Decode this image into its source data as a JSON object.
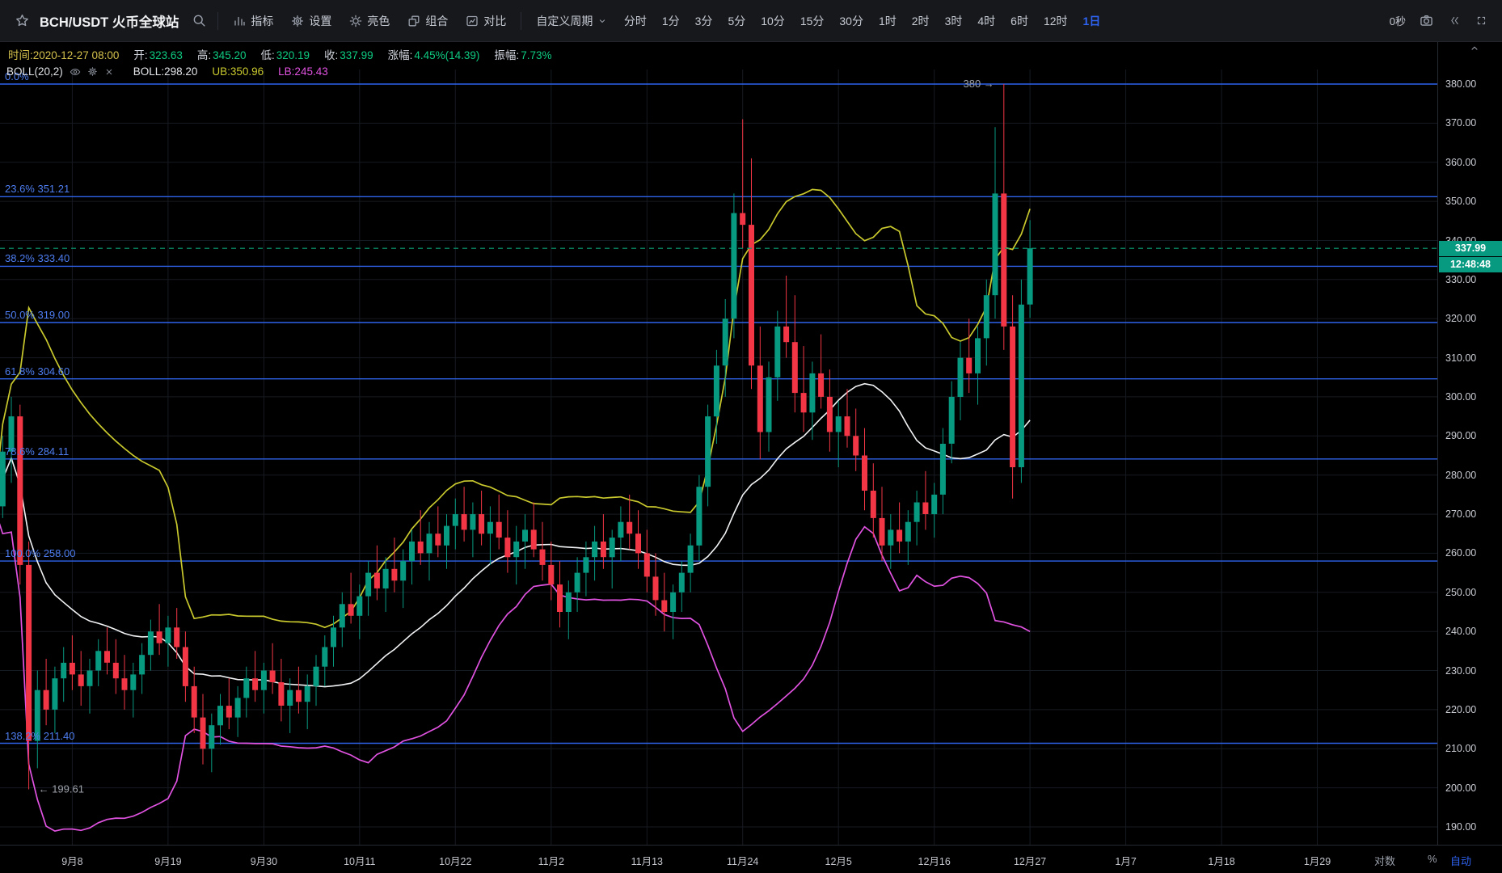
{
  "toolbar": {
    "symbol_title": "BCH/USDT 火币全球站",
    "menu_items": [
      {
        "id": "indicators",
        "label": "指标"
      },
      {
        "id": "settings",
        "label": "设置"
      },
      {
        "id": "theme",
        "label": "亮色"
      },
      {
        "id": "layout",
        "label": "组合"
      },
      {
        "id": "compare",
        "label": "对比"
      }
    ],
    "custom_period_label": "自定义周期",
    "timeframes": [
      "分时",
      "1分",
      "3分",
      "5分",
      "10分",
      "15分",
      "30分",
      "1时",
      "2时",
      "3时",
      "4时",
      "6时",
      "12时",
      "1日"
    ],
    "active_timeframe": "1日",
    "countdown": "0秒"
  },
  "info_bar": {
    "time_text": "时间:2020-12-27 08:00",
    "fields": [
      {
        "label": "开:",
        "value": "323.63"
      },
      {
        "label": "高:",
        "value": "345.20"
      },
      {
        "label": "低:",
        "value": "320.19"
      },
      {
        "label": "收:",
        "value": "337.99"
      },
      {
        "label": "涨幅:",
        "value": "4.45%(14.39)"
      },
      {
        "label": "振幅:",
        "value": "7.73%"
      }
    ]
  },
  "legend": {
    "indicator_name": "BOLL(20,2)",
    "values": [
      {
        "id": "mid",
        "text": "BOLL:298.20"
      },
      {
        "id": "ub",
        "text": "UB:350.96"
      },
      {
        "id": "lb",
        "text": "LB:245.43"
      }
    ]
  },
  "fib_levels": [
    {
      "label": "0.0%",
      "price": 380.0
    },
    {
      "label": "23.6% 351.21",
      "price": 351.21
    },
    {
      "label": "38.2% 333.40",
      "price": 333.4
    },
    {
      "label": "50.0% 319.00",
      "price": 319.0
    },
    {
      "label": "61.8% 304.60",
      "price": 304.6
    },
    {
      "label": "78.6% 284.11",
      "price": 284.11
    },
    {
      "label": "100.0% 258.00",
      "price": 258.0
    },
    {
      "label": "138.2% 211.40",
      "price": 211.4
    }
  ],
  "annotations": [
    {
      "text": "380 →",
      "price": 380.0,
      "day_index": 116,
      "side": "left"
    },
    {
      "text": "← 199.61",
      "price": 199.61,
      "day_index": 4,
      "side": "right"
    }
  ],
  "price_scale": {
    "labels": [
      "380.00",
      "370.00",
      "360.00",
      "350.00",
      "340.00",
      "330.00",
      "320.00",
      "310.00",
      "300.00",
      "290.00",
      "280.00",
      "270.00",
      "260.00",
      "250.00",
      "240.00",
      "230.00",
      "220.00",
      "210.00",
      "200.00",
      "190.00"
    ],
    "last_price_badge": "337.99",
    "countdown_badge": "12:48:48"
  },
  "time_scale": {
    "labels": [
      {
        "text": "9月8",
        "day_index": 9
      },
      {
        "text": "9月19",
        "day_index": 20
      },
      {
        "text": "9月30",
        "day_index": 31
      },
      {
        "text": "10月11",
        "day_index": 42
      },
      {
        "text": "10月22",
        "day_index": 53
      },
      {
        "text": "11月2",
        "day_index": 64
      },
      {
        "text": "11月13",
        "day_index": 75
      },
      {
        "text": "11月24",
        "day_index": 86
      },
      {
        "text": "12月5",
        "day_index": 97
      },
      {
        "text": "12月16",
        "day_index": 108
      },
      {
        "text": "12月27",
        "day_index": 119
      },
      {
        "text": "1月7",
        "day_index": 130
      },
      {
        "text": "1月18",
        "day_index": 141
      },
      {
        "text": "1月29",
        "day_index": 152
      }
    ]
  },
  "bottom_controls": {
    "log": "对数",
    "percent": "%",
    "auto": "自动"
  },
  "colors": {
    "up": "#089981",
    "down": "#f23645",
    "boll_mid": "#f2f3f5",
    "boll_ub": "#c9c92e",
    "boll_lb": "#e052e0",
    "fib_line": "#2e63ea",
    "fib_label": "#4e7ef2",
    "grid": "#161a21",
    "last_price_line": "#0a9f76",
    "accent": "#2e62f0",
    "info_green": "#0ecb81",
    "time_yellow": "#d4c14c",
    "annotation_gray": "#9ca1a9"
  },
  "chart_data": {
    "type": "candlestick",
    "symbol": "BCH/USDT",
    "exchange_label": "火币全球站",
    "interval": "1日",
    "y_axis": {
      "min": 190,
      "max": 380,
      "tick": 10
    },
    "last_price": 337.99,
    "current_candle": {
      "time": "2020-12-27 08:00",
      "open": 323.63,
      "high": 345.2,
      "low": 320.19,
      "close": 337.99,
      "change_pct": "4.45%",
      "change_abs": 14.39,
      "amplitude_pct": "7.73%"
    },
    "indicator": {
      "name": "BOLL",
      "period": 20,
      "multiplier": 2,
      "mid": 298.2,
      "ub": 350.96,
      "lb": 245.43
    },
    "candles": [
      [
        276,
        284,
        268,
        272
      ],
      [
        272,
        290,
        269,
        286
      ],
      [
        286,
        300,
        278,
        295
      ],
      [
        295,
        298,
        252,
        257
      ],
      [
        257,
        263,
        199.61,
        212
      ],
      [
        212,
        230,
        205,
        225
      ],
      [
        225,
        233,
        216,
        220
      ],
      [
        220,
        231,
        214,
        228
      ],
      [
        228,
        236,
        222,
        232
      ],
      [
        232,
        239,
        225,
        229
      ],
      [
        229,
        235,
        221,
        226
      ],
      [
        226,
        233,
        219,
        230
      ],
      [
        230,
        238,
        226,
        235
      ],
      [
        235,
        241,
        229,
        232
      ],
      [
        232,
        238,
        224,
        228
      ],
      [
        228,
        234,
        220,
        225
      ],
      [
        225,
        232,
        218,
        229
      ],
      [
        229,
        237,
        224,
        234
      ],
      [
        234,
        243,
        230,
        240
      ],
      [
        240,
        247,
        234,
        237
      ],
      [
        237,
        244,
        231,
        241
      ],
      [
        241,
        246,
        233,
        236
      ],
      [
        236,
        240,
        222,
        226
      ],
      [
        226,
        231,
        214,
        218
      ],
      [
        218,
        224,
        206,
        210
      ],
      [
        210,
        219,
        204,
        216
      ],
      [
        216,
        224,
        211,
        221
      ],
      [
        221,
        228,
        215,
        218
      ],
      [
        218,
        226,
        213,
        223
      ],
      [
        223,
        231,
        218,
        228
      ],
      [
        228,
        235,
        222,
        225
      ],
      [
        225,
        232,
        219,
        230
      ],
      [
        230,
        237,
        224,
        227
      ],
      [
        227,
        233,
        217,
        221
      ],
      [
        221,
        228,
        214,
        225
      ],
      [
        225,
        231,
        219,
        222
      ],
      [
        222,
        229,
        215,
        226
      ],
      [
        226,
        234,
        221,
        231
      ],
      [
        231,
        239,
        226,
        236
      ],
      [
        236,
        244,
        231,
        241
      ],
      [
        241,
        250,
        236,
        247
      ],
      [
        247,
        255,
        242,
        244
      ],
      [
        244,
        252,
        238,
        249
      ],
      [
        249,
        258,
        244,
        255
      ],
      [
        255,
        262,
        248,
        251
      ],
      [
        251,
        259,
        245,
        256
      ],
      [
        256,
        264,
        250,
        253
      ],
      [
        253,
        261,
        246,
        258
      ],
      [
        258,
        266,
        252,
        263
      ],
      [
        263,
        271,
        257,
        260
      ],
      [
        260,
        268,
        253,
        265
      ],
      [
        265,
        272,
        259,
        262
      ],
      [
        262,
        270,
        256,
        267
      ],
      [
        267,
        274,
        261,
        270
      ],
      [
        270,
        277,
        263,
        266
      ],
      [
        266,
        273,
        259,
        270
      ],
      [
        270,
        276,
        262,
        265
      ],
      [
        265,
        272,
        257,
        268
      ],
      [
        268,
        275,
        261,
        264
      ],
      [
        264,
        271,
        255,
        259
      ],
      [
        259,
        267,
        252,
        263
      ],
      [
        263,
        270,
        256,
        266
      ],
      [
        266,
        273,
        259,
        261
      ],
      [
        261,
        268,
        253,
        257
      ],
      [
        257,
        263,
        248,
        252
      ],
      [
        252,
        258,
        241,
        245
      ],
      [
        245,
        253,
        238,
        250
      ],
      [
        250,
        259,
        245,
        255
      ],
      [
        255,
        263,
        249,
        259
      ],
      [
        259,
        267,
        253,
        263
      ],
      [
        263,
        270,
        256,
        259
      ],
      [
        259,
        266,
        251,
        264
      ],
      [
        264,
        272,
        258,
        268
      ],
      [
        268,
        275,
        261,
        265
      ],
      [
        265,
        271,
        256,
        260
      ],
      [
        260,
        266,
        250,
        254
      ],
      [
        254,
        260,
        244,
        248
      ],
      [
        248,
        255,
        240,
        245
      ],
      [
        245,
        252,
        238,
        250
      ],
      [
        250,
        258,
        245,
        255
      ],
      [
        255,
        265,
        250,
        262
      ],
      [
        262,
        280,
        258,
        277
      ],
      [
        277,
        298,
        272,
        295
      ],
      [
        295,
        312,
        288,
        308
      ],
      [
        308,
        325,
        300,
        320
      ],
      [
        320,
        352,
        315,
        347
      ],
      [
        347,
        371,
        338,
        344
      ],
      [
        344,
        361,
        302,
        308
      ],
      [
        308,
        318,
        284,
        291
      ],
      [
        291,
        309,
        286,
        305
      ],
      [
        305,
        322,
        299,
        318
      ],
      [
        318,
        331,
        310,
        314
      ],
      [
        314,
        326,
        296,
        301
      ],
      [
        301,
        313,
        291,
        296
      ],
      [
        296,
        309,
        289,
        306
      ],
      [
        306,
        316,
        297,
        300
      ],
      [
        300,
        307,
        286,
        291
      ],
      [
        291,
        299,
        282,
        295
      ],
      [
        295,
        302,
        287,
        290
      ],
      [
        290,
        297,
        281,
        285
      ],
      [
        285,
        292,
        271,
        276
      ],
      [
        276,
        283,
        264,
        269
      ],
      [
        269,
        277,
        258,
        262
      ],
      [
        262,
        270,
        256,
        266
      ],
      [
        266,
        273,
        260,
        263
      ],
      [
        263,
        271,
        257,
        268
      ],
      [
        268,
        276,
        262,
        273
      ],
      [
        273,
        281,
        266,
        270
      ],
      [
        270,
        278,
        264,
        275
      ],
      [
        275,
        292,
        270,
        288
      ],
      [
        288,
        304,
        283,
        300
      ],
      [
        300,
        314,
        294,
        310
      ],
      [
        310,
        320,
        301,
        306
      ],
      [
        306,
        318,
        298,
        315
      ],
      [
        315,
        330,
        308,
        326
      ],
      [
        326,
        369,
        320,
        352
      ],
      [
        352,
        380,
        312,
        318
      ],
      [
        318,
        326,
        274,
        282
      ],
      [
        282,
        330,
        278,
        323.6
      ],
      [
        323.63,
        345.2,
        320.19,
        337.99
      ]
    ]
  }
}
